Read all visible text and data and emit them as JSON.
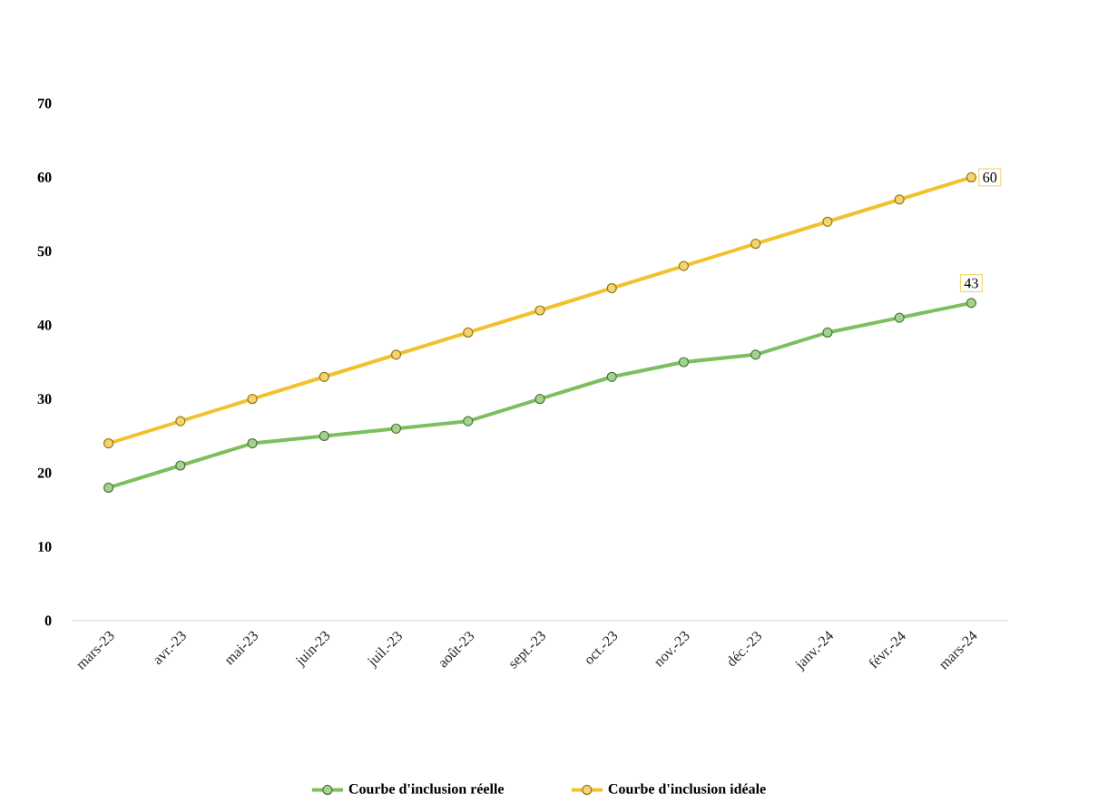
{
  "chart_data": {
    "type": "line",
    "categories": [
      "mars-23",
      "avr.-23",
      "mai-23",
      "juin-23",
      "juil.-23",
      "août-23",
      "sept.-23",
      "oct.-23",
      "nov.-23",
      "déc.-23",
      "janv.-24",
      "févr.-24",
      "mars-24"
    ],
    "series": [
      {
        "name": "Courbe d'inclusion réelle",
        "color": "#7dbf5e",
        "values": [
          18,
          21,
          24,
          25,
          26,
          27,
          30,
          33,
          35,
          36,
          39,
          41,
          43
        ],
        "value_labels": [
          null,
          null,
          null,
          null,
          null,
          null,
          null,
          null,
          null,
          null,
          null,
          null,
          "43"
        ]
      },
      {
        "name": "Courbe d'inclusion idéale",
        "color": "#f2c12e",
        "values": [
          24,
          27,
          30,
          33,
          36,
          39,
          42,
          45,
          48,
          51,
          54,
          57,
          60
        ],
        "value_labels": [
          null,
          null,
          null,
          null,
          null,
          null,
          null,
          null,
          null,
          null,
          null,
          null,
          "60"
        ]
      }
    ],
    "ylim": [
      0,
      70
    ],
    "yticks": [
      0,
      10,
      20,
      30,
      40,
      50,
      60,
      70
    ],
    "marker": "circle",
    "grid": false,
    "legend": "bottom"
  }
}
